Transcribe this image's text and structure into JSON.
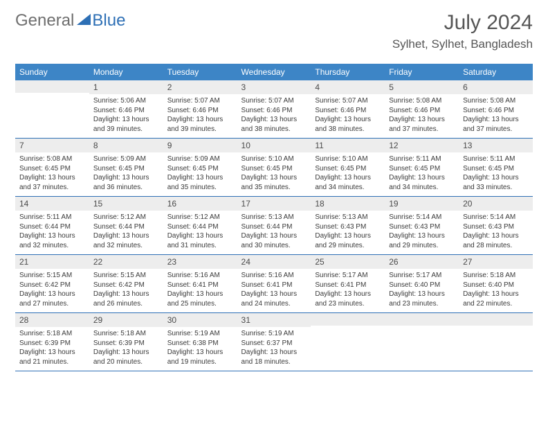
{
  "logo": {
    "text1": "General",
    "text2": "Blue"
  },
  "title": "July 2024",
  "location": "Sylhet, Sylhet, Bangladesh",
  "colors": {
    "header_bg": "#3d85c6",
    "header_text": "#ffffff",
    "daynum_bg": "#ededed",
    "border": "#2d6fb5",
    "logo_gray": "#6e6e6e",
    "logo_blue": "#2d6fb5"
  },
  "weekdays": [
    "Sunday",
    "Monday",
    "Tuesday",
    "Wednesday",
    "Thursday",
    "Friday",
    "Saturday"
  ],
  "start_offset": 1,
  "days": [
    {
      "n": 1,
      "sr": "5:06 AM",
      "ss": "6:46 PM",
      "dl": "13 hours and 39 minutes."
    },
    {
      "n": 2,
      "sr": "5:07 AM",
      "ss": "6:46 PM",
      "dl": "13 hours and 39 minutes."
    },
    {
      "n": 3,
      "sr": "5:07 AM",
      "ss": "6:46 PM",
      "dl": "13 hours and 38 minutes."
    },
    {
      "n": 4,
      "sr": "5:07 AM",
      "ss": "6:46 PM",
      "dl": "13 hours and 38 minutes."
    },
    {
      "n": 5,
      "sr": "5:08 AM",
      "ss": "6:46 PM",
      "dl": "13 hours and 37 minutes."
    },
    {
      "n": 6,
      "sr": "5:08 AM",
      "ss": "6:46 PM",
      "dl": "13 hours and 37 minutes."
    },
    {
      "n": 7,
      "sr": "5:08 AM",
      "ss": "6:45 PM",
      "dl": "13 hours and 37 minutes."
    },
    {
      "n": 8,
      "sr": "5:09 AM",
      "ss": "6:45 PM",
      "dl": "13 hours and 36 minutes."
    },
    {
      "n": 9,
      "sr": "5:09 AM",
      "ss": "6:45 PM",
      "dl": "13 hours and 35 minutes."
    },
    {
      "n": 10,
      "sr": "5:10 AM",
      "ss": "6:45 PM",
      "dl": "13 hours and 35 minutes."
    },
    {
      "n": 11,
      "sr": "5:10 AM",
      "ss": "6:45 PM",
      "dl": "13 hours and 34 minutes."
    },
    {
      "n": 12,
      "sr": "5:11 AM",
      "ss": "6:45 PM",
      "dl": "13 hours and 34 minutes."
    },
    {
      "n": 13,
      "sr": "5:11 AM",
      "ss": "6:45 PM",
      "dl": "13 hours and 33 minutes."
    },
    {
      "n": 14,
      "sr": "5:11 AM",
      "ss": "6:44 PM",
      "dl": "13 hours and 32 minutes."
    },
    {
      "n": 15,
      "sr": "5:12 AM",
      "ss": "6:44 PM",
      "dl": "13 hours and 32 minutes."
    },
    {
      "n": 16,
      "sr": "5:12 AM",
      "ss": "6:44 PM",
      "dl": "13 hours and 31 minutes."
    },
    {
      "n": 17,
      "sr": "5:13 AM",
      "ss": "6:44 PM",
      "dl": "13 hours and 30 minutes."
    },
    {
      "n": 18,
      "sr": "5:13 AM",
      "ss": "6:43 PM",
      "dl": "13 hours and 29 minutes."
    },
    {
      "n": 19,
      "sr": "5:14 AM",
      "ss": "6:43 PM",
      "dl": "13 hours and 29 minutes."
    },
    {
      "n": 20,
      "sr": "5:14 AM",
      "ss": "6:43 PM",
      "dl": "13 hours and 28 minutes."
    },
    {
      "n": 21,
      "sr": "5:15 AM",
      "ss": "6:42 PM",
      "dl": "13 hours and 27 minutes."
    },
    {
      "n": 22,
      "sr": "5:15 AM",
      "ss": "6:42 PM",
      "dl": "13 hours and 26 minutes."
    },
    {
      "n": 23,
      "sr": "5:16 AM",
      "ss": "6:41 PM",
      "dl": "13 hours and 25 minutes."
    },
    {
      "n": 24,
      "sr": "5:16 AM",
      "ss": "6:41 PM",
      "dl": "13 hours and 24 minutes."
    },
    {
      "n": 25,
      "sr": "5:17 AM",
      "ss": "6:41 PM",
      "dl": "13 hours and 23 minutes."
    },
    {
      "n": 26,
      "sr": "5:17 AM",
      "ss": "6:40 PM",
      "dl": "13 hours and 23 minutes."
    },
    {
      "n": 27,
      "sr": "5:18 AM",
      "ss": "6:40 PM",
      "dl": "13 hours and 22 minutes."
    },
    {
      "n": 28,
      "sr": "5:18 AM",
      "ss": "6:39 PM",
      "dl": "13 hours and 21 minutes."
    },
    {
      "n": 29,
      "sr": "5:18 AM",
      "ss": "6:39 PM",
      "dl": "13 hours and 20 minutes."
    },
    {
      "n": 30,
      "sr": "5:19 AM",
      "ss": "6:38 PM",
      "dl": "13 hours and 19 minutes."
    },
    {
      "n": 31,
      "sr": "5:19 AM",
      "ss": "6:37 PM",
      "dl": "13 hours and 18 minutes."
    }
  ],
  "labels": {
    "sunrise": "Sunrise:",
    "sunset": "Sunset:",
    "daylight": "Daylight:"
  }
}
